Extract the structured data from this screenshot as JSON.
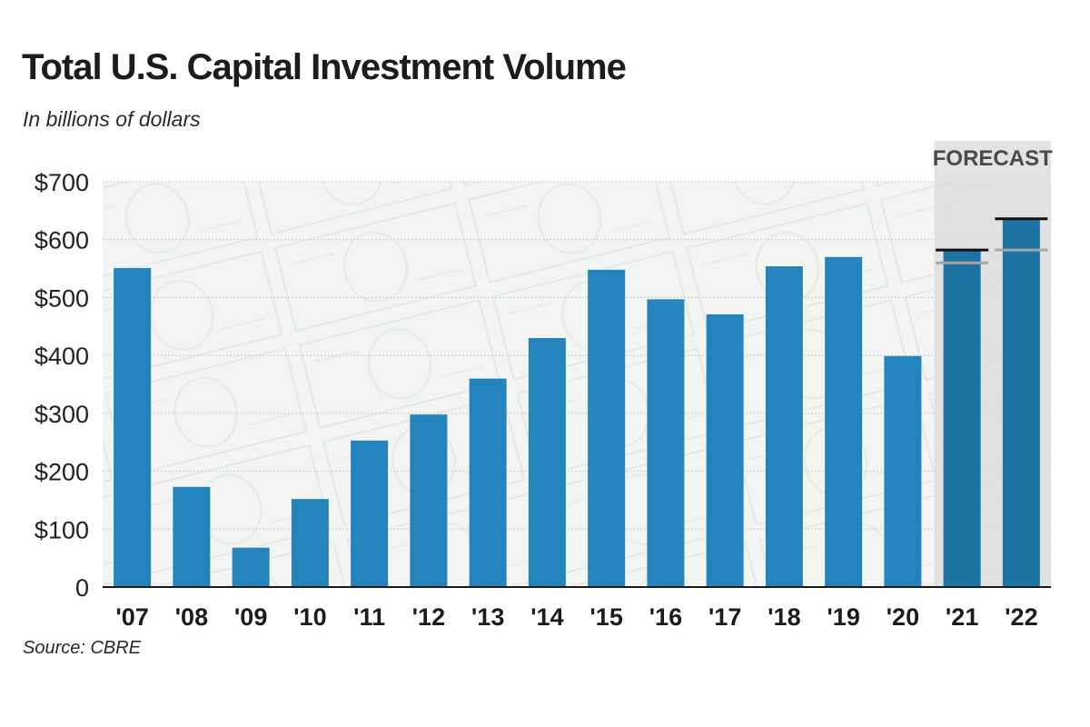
{
  "chart_data": {
    "type": "bar",
    "title": "Total U.S. Capital Investment Volume",
    "subtitle": "In billions of dollars",
    "source": "Source: CBRE",
    "forecast_label": "FORECAST",
    "categories": [
      "'07",
      "'08",
      "'09",
      "'10",
      "'11",
      "'12",
      "'13",
      "'14",
      "'15",
      "'16",
      "'17",
      "'18",
      "'19",
      "'20",
      "'21",
      "'22"
    ],
    "values": [
      551,
      173,
      68,
      152,
      253,
      298,
      360,
      430,
      548,
      497,
      471,
      554,
      570,
      399,
      582,
      636
    ],
    "forecast_categories": [
      "'21",
      "'22"
    ],
    "forecast_ranges": [
      {
        "category": "'21",
        "high": 582,
        "low": 560
      },
      {
        "category": "'22",
        "high": 636,
        "low": 582
      }
    ],
    "yticks": [
      "$700",
      "$600",
      "$500",
      "$400",
      "$300",
      "$200",
      "$100",
      "0"
    ],
    "ytick_values": [
      700,
      600,
      500,
      400,
      300,
      200,
      100,
      0
    ],
    "ylim": [
      0,
      700
    ],
    "xlabel": "",
    "ylabel": "",
    "grid": true,
    "colors": {
      "bar": "#2484bb",
      "bar_forecast": "#1d74a3",
      "forecast_high": "#111111",
      "forecast_low": "#a6a6a6",
      "forecast_bg": "#dcdcdc",
      "grid": "#c9c9c9",
      "axis": "#1a1a1a"
    }
  }
}
